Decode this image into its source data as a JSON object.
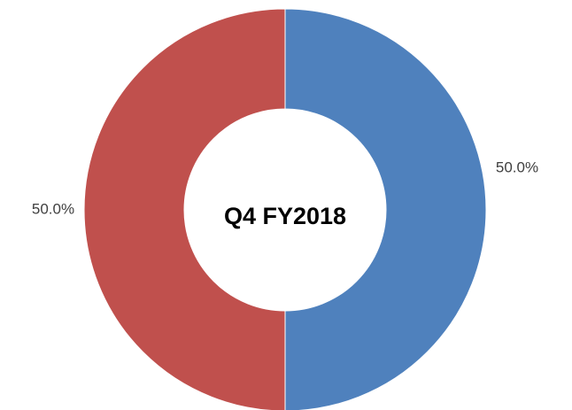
{
  "chart_data": {
    "type": "donut",
    "center_label": "Q4 FY2018",
    "values": [
      50,
      50
    ],
    "value_labels": [
      "50.0%",
      "50.0%"
    ],
    "colors": [
      "#4f81bd",
      "#c0504d"
    ]
  }
}
